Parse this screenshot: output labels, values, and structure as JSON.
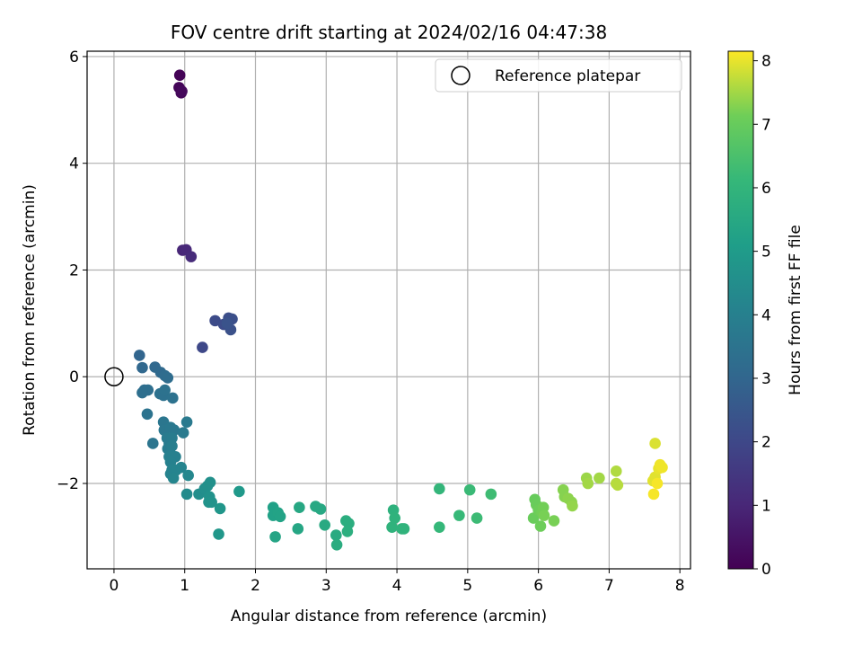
{
  "chart_data": {
    "type": "scatter",
    "title": "FOV centre drift starting at 2024/02/16 04:47:38",
    "xlabel": "Angular distance from reference (arcmin)",
    "ylabel": "Rotation from reference (arcmin)",
    "xlim": [
      -0.38,
      8.15
    ],
    "ylim": [
      -3.6,
      6.1
    ],
    "xticks": [
      0,
      1,
      2,
      3,
      4,
      5,
      6,
      7,
      8
    ],
    "yticks": [
      -2,
      0,
      2,
      4,
      6
    ],
    "xtick_labels": [
      "0",
      "1",
      "2",
      "3",
      "4",
      "5",
      "6",
      "7",
      "8"
    ],
    "ytick_labels": [
      "−2",
      "0",
      "2",
      "4",
      "6"
    ],
    "grid": true,
    "legend": {
      "placement": "top-right",
      "entries": [
        {
          "label": "Reference platepar",
          "marker": "open-circle"
        }
      ]
    },
    "reference_point": {
      "x": 0,
      "y": 0
    },
    "colorbar": {
      "label": "Hours from first FF file",
      "range": [
        0,
        8.15
      ],
      "ticks": [
        0,
        1,
        2,
        3,
        4,
        5,
        6,
        7,
        8
      ],
      "tick_labels": [
        "0",
        "1",
        "2",
        "3",
        "4",
        "5",
        "6",
        "7",
        "8"
      ],
      "colormap": "viridis"
    },
    "points": [
      [
        0.93,
        5.65,
        0.05
      ],
      [
        0.92,
        5.42,
        0.1
      ],
      [
        0.95,
        5.32,
        0.15
      ],
      [
        0.96,
        5.35,
        0.2
      ],
      [
        0.97,
        2.37,
        1.0
      ],
      [
        1.02,
        2.38,
        1.05
      ],
      [
        1.09,
        2.25,
        1.15
      ],
      [
        1.25,
        0.55,
        2.0
      ],
      [
        1.43,
        1.05,
        2.1
      ],
      [
        1.55,
        0.98,
        2.15
      ],
      [
        1.62,
        1.1,
        2.2
      ],
      [
        1.67,
        1.08,
        2.25
      ],
      [
        1.65,
        0.88,
        2.3
      ],
      [
        1.6,
        1.0,
        2.35
      ],
      [
        0.36,
        0.4,
        3.0
      ],
      [
        0.4,
        0.17,
        3.05
      ],
      [
        0.58,
        0.18,
        3.1
      ],
      [
        0.66,
        0.08,
        3.15
      ],
      [
        0.72,
        0.02,
        3.2
      ],
      [
        0.76,
        -0.02,
        3.25
      ],
      [
        0.43,
        -0.25,
        3.3
      ],
      [
        0.48,
        -0.25,
        3.35
      ],
      [
        0.4,
        -0.3,
        3.35
      ],
      [
        0.65,
        -0.32,
        3.4
      ],
      [
        0.7,
        -0.35,
        3.4
      ],
      [
        0.72,
        -0.25,
        3.45
      ],
      [
        0.83,
        -0.4,
        3.45
      ],
      [
        0.47,
        -0.7,
        3.5
      ],
      [
        0.55,
        -1.25,
        3.55
      ],
      [
        0.7,
        -0.85,
        3.6
      ],
      [
        0.71,
        -1.0,
        3.65
      ],
      [
        0.8,
        -0.95,
        3.7
      ],
      [
        0.85,
        -1.0,
        3.7
      ],
      [
        0.98,
        -1.05,
        3.75
      ],
      [
        1.03,
        -0.85,
        3.75
      ],
      [
        0.75,
        -1.15,
        3.8
      ],
      [
        0.78,
        -1.25,
        3.8
      ],
      [
        0.82,
        -1.15,
        3.85
      ],
      [
        0.76,
        -1.35,
        3.85
      ],
      [
        0.82,
        -1.3,
        3.9
      ],
      [
        0.8,
        -1.45,
        3.9
      ],
      [
        0.78,
        -1.5,
        4.0
      ],
      [
        0.87,
        -1.5,
        4.0
      ],
      [
        0.8,
        -1.6,
        4.05
      ],
      [
        0.82,
        -1.75,
        4.1
      ],
      [
        0.8,
        -1.82,
        4.1
      ],
      [
        0.88,
        -1.75,
        4.15
      ],
      [
        0.95,
        -1.7,
        4.15
      ],
      [
        0.84,
        -1.9,
        4.2
      ],
      [
        1.05,
        -1.85,
        4.25
      ],
      [
        1.03,
        -2.2,
        4.4
      ],
      [
        1.2,
        -2.2,
        4.5
      ],
      [
        1.28,
        -2.1,
        4.55
      ],
      [
        1.32,
        -2.05,
        4.6
      ],
      [
        1.36,
        -1.98,
        4.6
      ],
      [
        1.35,
        -2.25,
        4.65
      ],
      [
        1.34,
        -2.35,
        4.7
      ],
      [
        1.38,
        -2.35,
        4.7
      ],
      [
        1.5,
        -2.47,
        4.8
      ],
      [
        1.48,
        -2.95,
        4.85
      ],
      [
        1.77,
        -2.15,
        4.9
      ],
      [
        2.25,
        -2.45,
        5.2
      ],
      [
        2.25,
        -2.6,
        5.25
      ],
      [
        2.32,
        -2.55,
        5.3
      ],
      [
        2.35,
        -2.62,
        5.3
      ],
      [
        2.28,
        -3.0,
        5.35
      ],
      [
        2.6,
        -2.85,
        5.4
      ],
      [
        2.62,
        -2.45,
        5.45
      ],
      [
        2.85,
        -2.43,
        5.5
      ],
      [
        2.92,
        -2.48,
        5.5
      ],
      [
        2.98,
        -2.78,
        5.55
      ],
      [
        3.14,
        -2.97,
        5.6
      ],
      [
        3.15,
        -3.15,
        5.65
      ],
      [
        3.28,
        -2.7,
        5.7
      ],
      [
        3.32,
        -2.75,
        5.7
      ],
      [
        3.3,
        -2.9,
        5.75
      ],
      [
        3.95,
        -2.5,
        5.85
      ],
      [
        3.97,
        -2.65,
        5.9
      ],
      [
        3.93,
        -2.82,
        5.9
      ],
      [
        4.07,
        -2.85,
        5.95
      ],
      [
        4.1,
        -2.85,
        5.95
      ],
      [
        4.6,
        -2.1,
        6.05
      ],
      [
        4.6,
        -2.82,
        6.1
      ],
      [
        4.88,
        -2.6,
        6.15
      ],
      [
        5.03,
        -2.12,
        6.2
      ],
      [
        5.13,
        -2.65,
        6.25
      ],
      [
        5.33,
        -2.2,
        6.3
      ],
      [
        5.95,
        -2.3,
        7.0
      ],
      [
        5.97,
        -2.4,
        7.05
      ],
      [
        5.93,
        -2.65,
        7.05
      ],
      [
        6.0,
        -2.5,
        7.1
      ],
      [
        6.03,
        -2.8,
        7.1
      ],
      [
        6.05,
        -2.55,
        7.15
      ],
      [
        6.07,
        -2.45,
        7.15
      ],
      [
        6.08,
        -2.6,
        7.2
      ],
      [
        6.22,
        -2.7,
        7.2
      ],
      [
        6.35,
        -2.12,
        7.3
      ],
      [
        6.37,
        -2.25,
        7.3
      ],
      [
        6.42,
        -2.28,
        7.35
      ],
      [
        6.47,
        -2.35,
        7.35
      ],
      [
        6.48,
        -2.42,
        7.4
      ],
      [
        6.68,
        -1.9,
        7.45
      ],
      [
        6.7,
        -2.0,
        7.5
      ],
      [
        6.86,
        -1.9,
        7.5
      ],
      [
        7.1,
        -1.77,
        7.6
      ],
      [
        7.1,
        -2.0,
        7.65
      ],
      [
        7.12,
        -2.03,
        7.65
      ],
      [
        7.65,
        -1.25,
        7.9
      ],
      [
        7.62,
        -1.95,
        7.95
      ],
      [
        7.65,
        -1.88,
        7.95
      ],
      [
        7.7,
        -1.72,
        8.0
      ],
      [
        7.72,
        -1.65,
        8.05
      ],
      [
        7.75,
        -1.7,
        8.05
      ],
      [
        7.63,
        -2.2,
        8.1
      ],
      [
        7.68,
        -2.0,
        8.1
      ]
    ]
  }
}
